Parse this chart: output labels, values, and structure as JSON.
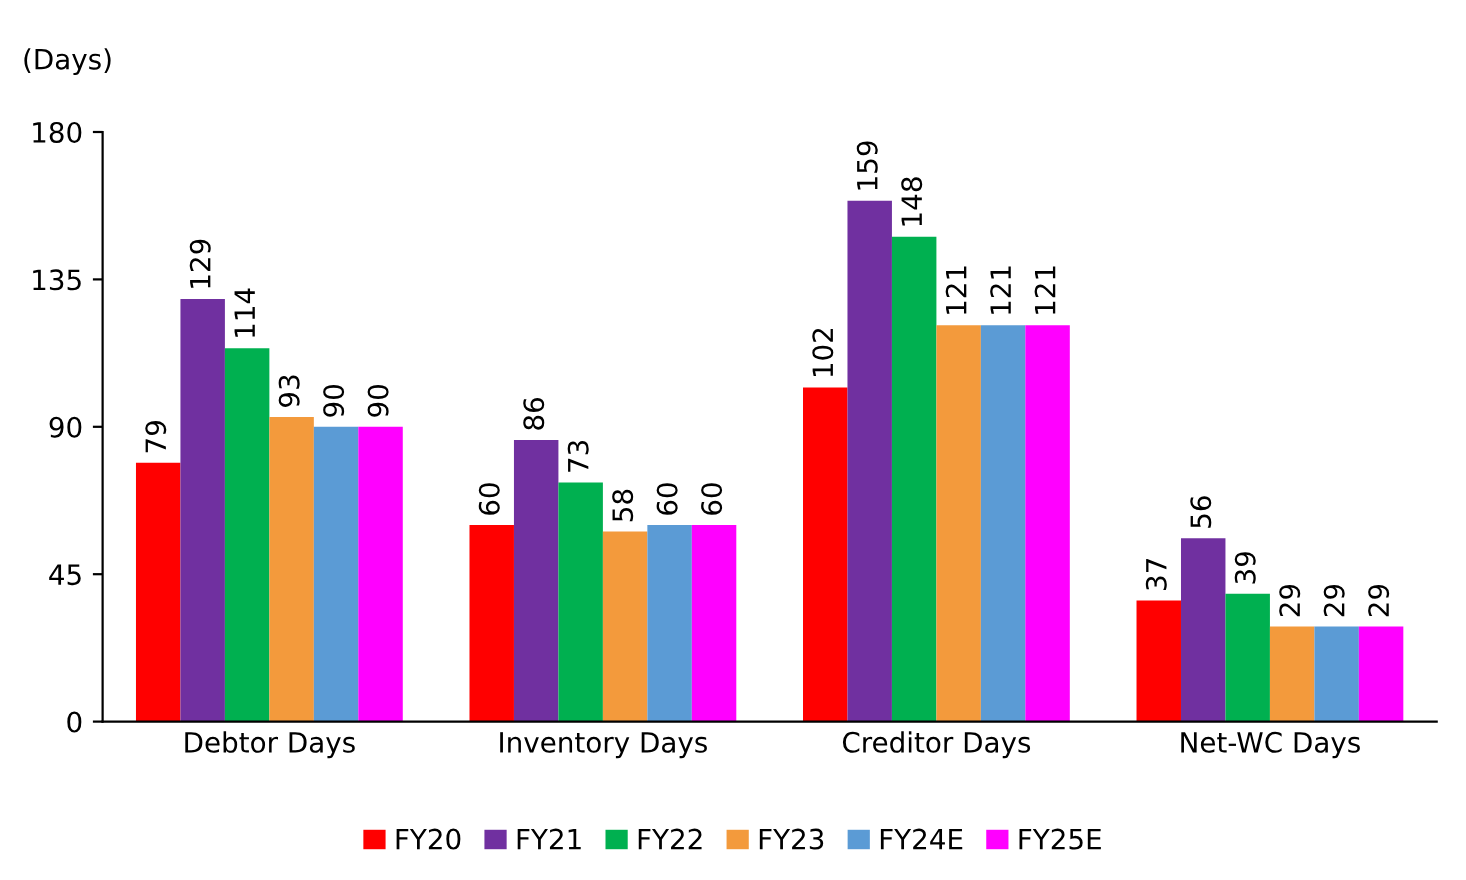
{
  "chart_data": {
    "type": "bar",
    "ylabel": "(Days)",
    "categories": [
      "Debtor Days",
      "Inventory Days",
      "Creditor Days",
      "Net-WC Days"
    ],
    "series": [
      {
        "name": "FY20",
        "color": "#ff0000",
        "values": [
          79,
          60,
          102,
          37
        ]
      },
      {
        "name": "FY21",
        "color": "#7030a0",
        "values": [
          129,
          86,
          159,
          56
        ]
      },
      {
        "name": "FY22",
        "color": "#00b050",
        "values": [
          114,
          73,
          148,
          39
        ]
      },
      {
        "name": "FY23",
        "color": "#f39a3c",
        "values": [
          93,
          58,
          121,
          29
        ]
      },
      {
        "name": "FY24E",
        "color": "#5b9bd5",
        "values": [
          90,
          60,
          121,
          29
        ]
      },
      {
        "name": "FY25E",
        "color": "#ff00ff",
        "values": [
          90,
          60,
          121,
          29
        ]
      }
    ],
    "ylim": [
      0,
      180
    ],
    "yticks": [
      0,
      45,
      90,
      135,
      180
    ],
    "grid": false,
    "legend": "bottom",
    "data_labels": true
  }
}
